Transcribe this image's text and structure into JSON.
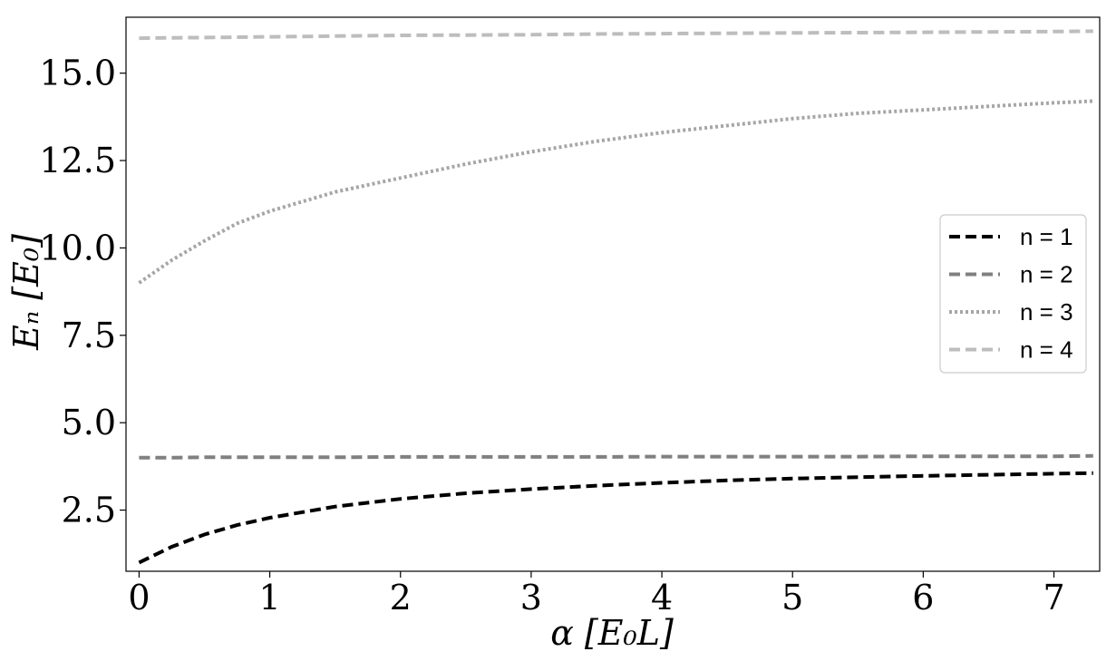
{
  "chart_data": {
    "type": "line",
    "title": "",
    "xlabel": "α [E₀L]",
    "ylabel": "Eₙ [E₀]",
    "xlim": [
      -0.1,
      7.35
    ],
    "ylim": [
      0.75,
      16.6
    ],
    "xticks": [
      0,
      1,
      2,
      3,
      4,
      5,
      6,
      7
    ],
    "xtick_labels": [
      "0",
      "1",
      "2",
      "3",
      "4",
      "5",
      "6",
      "7"
    ],
    "yticks": [
      2.5,
      5.0,
      7.5,
      10.0,
      12.5,
      15.0
    ],
    "ytick_labels": [
      "2.5",
      "5.0",
      "7.5",
      "10.0",
      "12.5",
      "15.0"
    ],
    "grid": false,
    "legend_position": "center-right",
    "x": [
      0,
      0.25,
      0.5,
      0.75,
      1,
      1.5,
      2,
      2.5,
      3,
      3.5,
      4,
      4.5,
      5,
      5.5,
      6,
      6.5,
      7,
      7.3
    ],
    "series": [
      {
        "name": "n = 1",
        "color": "#000000",
        "style": "dashed",
        "values": [
          1.0,
          1.45,
          1.8,
          2.07,
          2.28,
          2.6,
          2.82,
          2.98,
          3.1,
          3.2,
          3.28,
          3.35,
          3.4,
          3.44,
          3.48,
          3.51,
          3.54,
          3.56
        ]
      },
      {
        "name": "n = 2",
        "color": "#808080",
        "style": "dashed",
        "values": [
          4.0,
          4.0,
          4.01,
          4.01,
          4.01,
          4.01,
          4.02,
          4.02,
          4.02,
          4.02,
          4.03,
          4.03,
          4.03,
          4.03,
          4.04,
          4.04,
          4.04,
          4.05
        ]
      },
      {
        "name": "n = 3",
        "color": "#a6a6a6",
        "style": "dotted",
        "values": [
          9.0,
          9.65,
          10.2,
          10.7,
          11.05,
          11.6,
          12.0,
          12.4,
          12.75,
          13.05,
          13.3,
          13.5,
          13.7,
          13.85,
          13.95,
          14.05,
          14.15,
          14.2
        ]
      },
      {
        "name": "n = 4",
        "color": "#bdbdbd",
        "style": "dashed",
        "values": [
          16.0,
          16.01,
          16.02,
          16.03,
          16.04,
          16.06,
          16.08,
          16.09,
          16.1,
          16.12,
          16.13,
          16.14,
          16.15,
          16.16,
          16.17,
          16.18,
          16.19,
          16.2
        ]
      }
    ]
  }
}
